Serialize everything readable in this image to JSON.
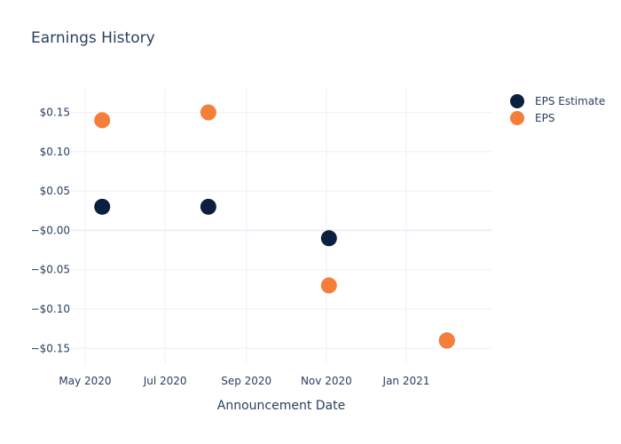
{
  "chart_data": {
    "type": "scatter",
    "title": "Earnings History",
    "xlabel": "Announcement Date",
    "ylabel": "",
    "x_ticks": [
      {
        "date": "2020-05-01",
        "label": "May 2020"
      },
      {
        "date": "2020-07-01",
        "label": "Jul 2020"
      },
      {
        "date": "2020-09-01",
        "label": "Sep 2020"
      },
      {
        "date": "2020-11-01",
        "label": "Nov 2020"
      },
      {
        "date": "2021-01-01",
        "label": "Jan 2021"
      }
    ],
    "y_ticks": [
      {
        "value": 0.15,
        "label": "$0.15"
      },
      {
        "value": 0.1,
        "label": "$0.10"
      },
      {
        "value": 0.05,
        "label": "$0.05"
      },
      {
        "value": 0.0,
        "label": "−$0.00"
      },
      {
        "value": -0.05,
        "label": "−$0.05"
      },
      {
        "value": -0.1,
        "label": "−$0.10"
      },
      {
        "value": -0.15,
        "label": "−$0.15"
      }
    ],
    "xlim": [
      "2020-05-01",
      "2021-03-07"
    ],
    "ylim": [
      -0.17,
      0.18
    ],
    "grid": true,
    "legend_position": "top-right",
    "series": [
      {
        "name": "EPS Estimate",
        "color": "#0b1f3f",
        "points": [
          {
            "x": "2020-05-14",
            "y": 0.03
          },
          {
            "x": "2020-08-03",
            "y": 0.03
          },
          {
            "x": "2020-11-03",
            "y": -0.01
          },
          {
            "x": "2021-02-01",
            "y": -0.14
          }
        ]
      },
      {
        "name": "EPS",
        "color": "#f47e3a",
        "points": [
          {
            "x": "2020-05-14",
            "y": 0.14
          },
          {
            "x": "2020-08-03",
            "y": 0.15
          },
          {
            "x": "2020-11-03",
            "y": -0.07
          },
          {
            "x": "2021-02-01",
            "y": -0.14
          }
        ]
      }
    ]
  }
}
